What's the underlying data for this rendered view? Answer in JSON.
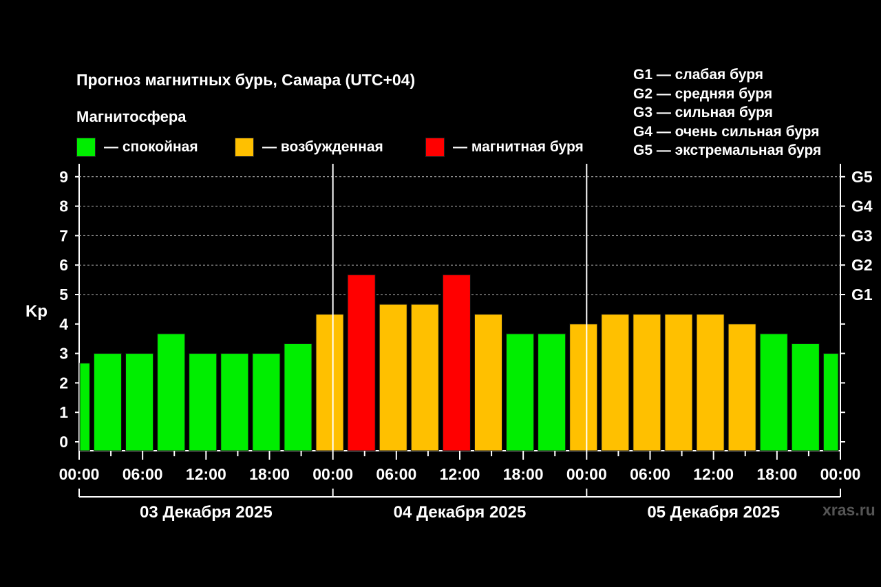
{
  "title": "Прогноз магнитных бурь, Самара (UTC+04)",
  "subtitle": "Магнитосфера",
  "legend": [
    {
      "label": "— спокойная",
      "color": "#00ee00"
    },
    {
      "label": "— возбужденная",
      "color": "#ffc000"
    },
    {
      "label": "— магнитная буря",
      "color": "#ff0000"
    }
  ],
  "g_legend": [
    "G1 — слабая буря",
    "G2 — средняя буря",
    "G3 — сильная буря",
    "G4 — очень сильная буря",
    "G5 — экстремальная буря"
  ],
  "watermark": "xras.ru",
  "chart_data": {
    "type": "bar",
    "ylabel": "Kp",
    "ylim": [
      0,
      9
    ],
    "yticks": [
      "0",
      "1",
      "2",
      "3",
      "4",
      "5",
      "6",
      "7",
      "8",
      "9"
    ],
    "right_ticks": [
      {
        "kp": 5,
        "label": "G1"
      },
      {
        "kp": 6,
        "label": "G2"
      },
      {
        "kp": 7,
        "label": "G3"
      },
      {
        "kp": 8,
        "label": "G4"
      },
      {
        "kp": 9,
        "label": "G5"
      }
    ],
    "x_tick_labels": [
      "00:00",
      "06:00",
      "12:00",
      "18:00",
      "00:00",
      "06:00",
      "12:00",
      "18:00",
      "00:00",
      "06:00",
      "12:00",
      "18:00",
      "00:00"
    ],
    "days": [
      "03 Декабря 2025",
      "04 Декабря 2025",
      "05 Декабря 2025"
    ],
    "grid": "dashed horizontal at 5-9",
    "values": [
      2.67,
      3.0,
      3.0,
      3.67,
      3.0,
      3.0,
      3.0,
      3.33,
      4.33,
      5.67,
      4.67,
      4.67,
      5.67,
      4.33,
      3.67,
      3.67,
      4.0,
      4.33,
      4.33,
      4.33,
      4.33,
      4.0,
      3.67,
      3.33,
      3.0
    ],
    "levels": [
      "calm",
      "calm",
      "calm",
      "calm",
      "calm",
      "calm",
      "calm",
      "calm",
      "excited",
      "storm",
      "excited",
      "excited",
      "storm",
      "excited",
      "calm",
      "calm",
      "excited",
      "excited",
      "excited",
      "excited",
      "excited",
      "excited",
      "calm",
      "calm",
      "calm"
    ],
    "level_colors": {
      "calm": "#00ee00",
      "excited": "#ffc000",
      "storm": "#ff0000"
    }
  }
}
